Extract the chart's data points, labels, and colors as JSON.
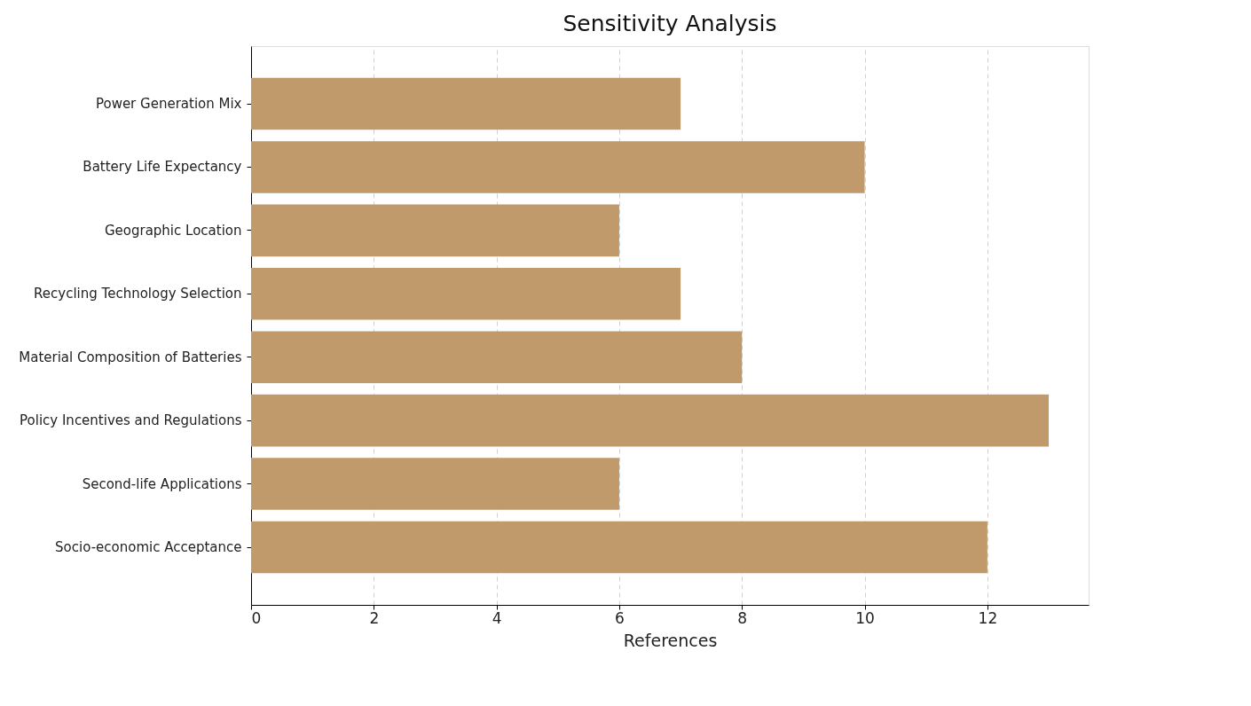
{
  "chart_data": {
    "type": "bar",
    "orientation": "horizontal",
    "title": "Sensitivity Analysis",
    "xlabel": "References",
    "categories": [
      "Power Generation Mix",
      "Battery Life Expectancy",
      "Geographic Location",
      "Recycling Technology Selection",
      "Material Composition of Batteries",
      "Policy Incentives and Regulations",
      "Second-life Applications",
      "Socio-economic Acceptance"
    ],
    "values": [
      7,
      10,
      6,
      7,
      8,
      13,
      6,
      12
    ],
    "color": "#c09a6b",
    "xlim": [
      0,
      13.65
    ],
    "xticks": [
      0,
      2,
      4,
      6,
      8,
      10,
      12
    ],
    "grid": "x",
    "line_style": "dashed"
  }
}
